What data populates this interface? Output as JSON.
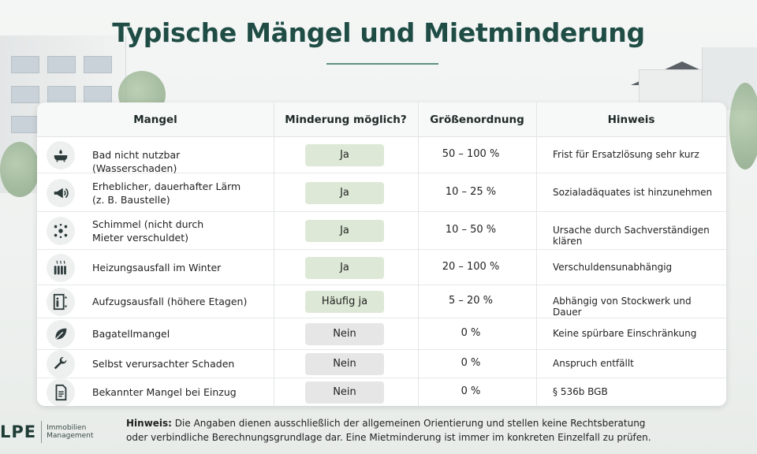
{
  "title": "Typische Mängel und Mietminderung",
  "table": {
    "headers": [
      "Mangel",
      "Minderung möglich?",
      "Größenordnung",
      "Hinweis"
    ],
    "rows": [
      {
        "icon": "bathtub-icon",
        "mangel": "Bad nicht nutzbar  (Wasserschaden)",
        "mangel2": "",
        "minderung": "Ja",
        "type": "yes",
        "range": "50 – 100 %",
        "hint": "Frist für Ersatzlösung sehr kurz"
      },
      {
        "icon": "megaphone-icon",
        "mangel": "Erheblicher, dauerhafter Lärm",
        "mangel2": "(z. B. Baustelle)",
        "minderung": "Ja",
        "type": "yes",
        "range": "10 – 25 %",
        "hint": "Sozialadäquates ist hinzunehmen"
      },
      {
        "icon": "mold-icon",
        "mangel": "Schimmel (nicht durch",
        "mangel2": "Mieter verschuldet)",
        "minderung": "Ja",
        "type": "yes",
        "range": "10 – 50 %",
        "hint": "Ursache durch Sachverständigen klären"
      },
      {
        "icon": "radiator-icon",
        "mangel": "Heizungsausfall im Winter",
        "mangel2": "",
        "minderung": "Ja",
        "type": "yes",
        "range": "20 – 100 %",
        "hint": "Verschuldensunabhängig"
      },
      {
        "icon": "elevator-icon",
        "mangel": "Aufzugsausfall (höhere Etagen)",
        "mangel2": "",
        "minderung": "Häufig ja",
        "type": "yes",
        "range": "5 – 20 %",
        "hint": "Abhängig von Stockwerk und Dauer"
      },
      {
        "icon": "leaf-icon",
        "mangel": "Bagatellmangel",
        "mangel2": "",
        "minderung": "Nein",
        "type": "no",
        "range": "0 %",
        "hint": "Keine spürbare Einschränkung"
      },
      {
        "icon": "wrench-icon",
        "mangel": "Selbst verursachter Schaden",
        "mangel2": "",
        "minderung": "Nein",
        "type": "no",
        "range": "0 %",
        "hint": "Anspruch entfällt"
      },
      {
        "icon": "document-icon",
        "mangel": "Bekannter Mangel bei Einzug",
        "mangel2": "",
        "minderung": "Nein",
        "type": "no",
        "range": "0 %",
        "hint": "§ 536b BGB"
      }
    ]
  },
  "footnote": {
    "label": "Hinweis:",
    "text": " Die Angaben dienen ausschließlich der allgemeinen Orientierung und stellen keine Rechtsberatung oder verbindliche Berechnungsgrundlage dar. Eine Mietminderung ist immer im konkreten Einzelfall zu prüfen."
  },
  "logo": {
    "mark": "LPE",
    "line1": "Immobilien",
    "line2": "Management"
  },
  "colors": {
    "title": "#1f4d45",
    "yes_pill": "#dde8d6",
    "no_pill": "#e6e6e6"
  }
}
